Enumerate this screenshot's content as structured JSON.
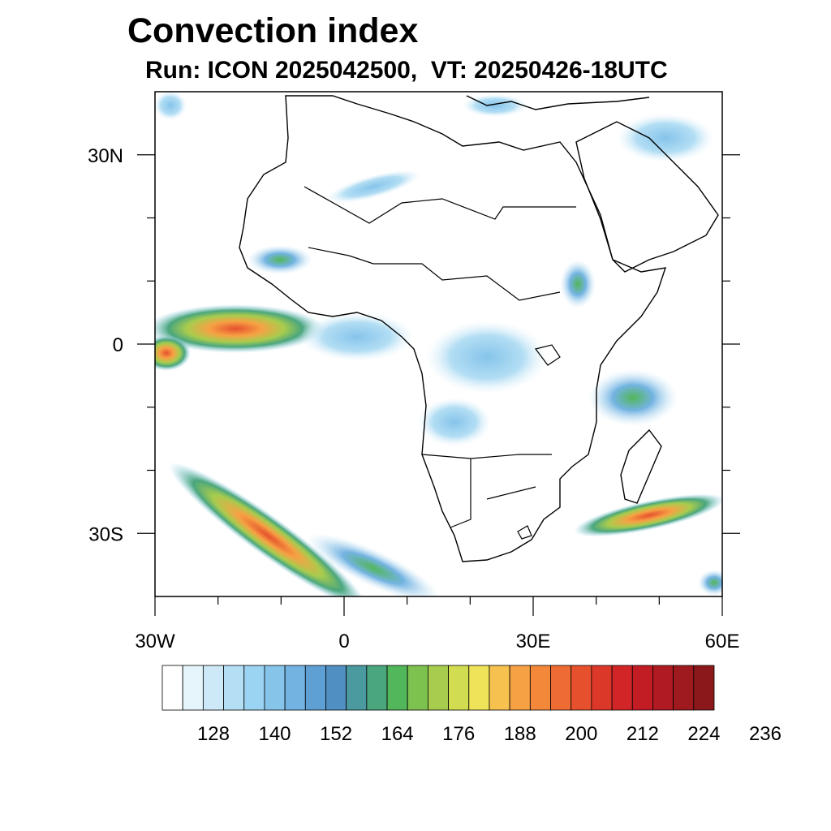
{
  "title": "Convection index",
  "subtitle": "Run: ICON 2025042500,  VT: 20250426-18UTC",
  "map": {
    "region": "Africa",
    "lon_range": [
      -30,
      60
    ],
    "lat_range": [
      -40,
      40
    ],
    "x_ticks": [
      "30W",
      "0",
      "30E",
      "60E"
    ],
    "y_ticks": [
      "30N",
      "0",
      "30S"
    ],
    "coastline_color": "#000000"
  },
  "colorbar": {
    "labels": [
      "128",
      "140",
      "152",
      "164",
      "176",
      "188",
      "200",
      "212",
      "224",
      "236"
    ],
    "colors": [
      "#ffffff",
      "#e6f4fb",
      "#cde9f7",
      "#b3def4",
      "#9bd3f2",
      "#86c4ea",
      "#73b3e2",
      "#5e9fd4",
      "#4f8fc1",
      "#4a9aa0",
      "#4aa67d",
      "#52b65a",
      "#7dc24f",
      "#a8cc4e",
      "#d2dc50",
      "#efe35a",
      "#f6c14f",
      "#f6a244",
      "#f3883a",
      "#ee6b33",
      "#e6502d",
      "#dc382a",
      "#d22527",
      "#c21c25",
      "#b01a22",
      "#9e1a1f",
      "#8b191c"
    ]
  }
}
